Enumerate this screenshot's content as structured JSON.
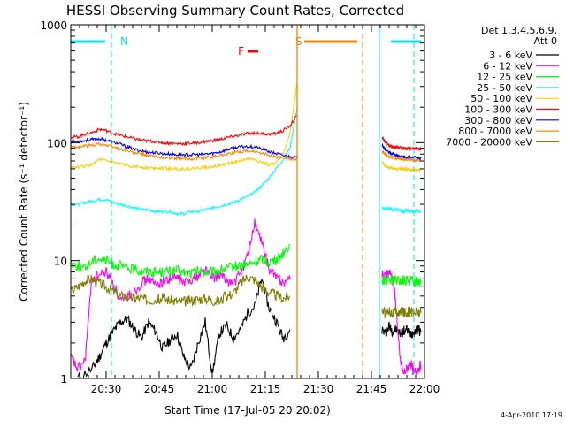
{
  "chart_data": {
    "type": "line",
    "title": "HESSI Observing Summary Count Rates, Corrected",
    "xlabel": "Start Time (17-Jul-05 20:20:02)",
    "ylabel": "Corrected Count Rate (s⁻¹ detector⁻¹)",
    "y_scale": "log",
    "ylim": [
      1,
      1000
    ],
    "xlim_minutes_after_2020": [
      0,
      100
    ],
    "x_ticks": [
      {
        "label": "20:30",
        "minute": 10
      },
      {
        "label": "20:45",
        "minute": 25
      },
      {
        "label": "21:00",
        "minute": 40
      },
      {
        "label": "21:15",
        "minute": 55
      },
      {
        "label": "21:30",
        "minute": 70
      },
      {
        "label": "21:45",
        "minute": 85
      },
      {
        "label": "22:00",
        "minute": 100
      }
    ],
    "y_ticks": [
      {
        "label": "1",
        "value": 1
      },
      {
        "label": "10",
        "value": 10
      },
      {
        "label": "100",
        "value": 100
      },
      {
        "label": "1000",
        "value": 1000
      }
    ],
    "legend_header": [
      "Det 1,3,4,5,6,9,",
      "Att 0"
    ],
    "legend_placement": "right",
    "grid": false,
    "flags": [
      {
        "label": "N",
        "color": "#00e5e5",
        "segments": [
          [
            0,
            9.7
          ],
          [
            90.5,
            99
          ]
        ],
        "dashed_at": [
          11.5,
          97
        ],
        "solid_at": 87.2
      },
      {
        "label": "S",
        "color": "#ff7f00",
        "segments": [
          [
            66,
            81
          ]
        ],
        "dashed_at": [
          82.5
        ],
        "solid_at": 64
      },
      {
        "label": "F",
        "color": "#ff0000",
        "segments": [
          [
            50,
            53
          ]
        ]
      }
    ],
    "series": [
      {
        "name": "3 - 6 keV",
        "color": "#000000",
        "x": [
          2,
          6,
          8,
          10,
          12,
          14,
          16,
          18,
          20,
          22,
          24,
          26,
          28,
          30,
          32,
          34,
          36,
          38,
          40,
          42,
          44,
          46,
          48,
          50,
          52,
          54,
          56,
          58,
          60,
          62
        ],
        "y": [
          1,
          1.2,
          1.5,
          2.0,
          2.5,
          3,
          3.2,
          2.6,
          2.2,
          3,
          2.5,
          1.8,
          2.1,
          2.4,
          1.5,
          1.2,
          2,
          3,
          1.1,
          2.4,
          2.8,
          2.2,
          2.6,
          3.6,
          4.1,
          7,
          4,
          3.1,
          2.2,
          2.6
        ]
      },
      {
        "name": "6 - 12 keV",
        "color": "#ff00ff",
        "x": [
          0,
          2,
          4,
          6,
          8,
          10,
          12,
          14,
          16,
          18,
          20,
          22,
          24,
          26,
          28,
          30,
          32,
          34,
          36,
          38,
          40,
          42,
          44,
          46,
          48,
          50,
          52,
          54,
          56,
          58,
          60,
          62
        ],
        "y": [
          1.5,
          1.2,
          1.4,
          7,
          7.5,
          8,
          6.5,
          4.5,
          5,
          5.5,
          6.5,
          7,
          6.2,
          6.7,
          7,
          7.2,
          6.4,
          7,
          7.4,
          8.5,
          7.1,
          7.5,
          6.8,
          6.4,
          7.8,
          11,
          21,
          14,
          8.5,
          7.3,
          6.6,
          6.9
        ]
      },
      {
        "name": "12 - 25 keV",
        "color": "#00ff00",
        "x": [
          0,
          2,
          4,
          6,
          8,
          10,
          12,
          14,
          16,
          18,
          20,
          22,
          24,
          26,
          28,
          30,
          32,
          34,
          36,
          38,
          40,
          42,
          44,
          46,
          48,
          50,
          52,
          54,
          56,
          58,
          60,
          62
        ],
        "y": [
          9.5,
          9,
          8.5,
          10,
          10.5,
          10,
          9.3,
          9,
          8.6,
          8.4,
          8.2,
          8.1,
          8,
          8,
          8.1,
          8.2,
          7.9,
          7.8,
          8.1,
          8,
          7.9,
          8.3,
          8.5,
          8.9,
          9.1,
          9.2,
          9.6,
          10.4,
          9.7,
          10.1,
          11.6,
          13.7
        ]
      },
      {
        "name": "25 - 50 keV",
        "color": "#00ffff",
        "x": [
          0,
          2,
          4,
          6,
          8,
          10,
          12,
          14,
          16,
          18,
          20,
          22,
          24,
          26,
          28,
          30,
          32,
          34,
          36,
          38,
          40,
          42,
          44,
          46,
          48,
          50,
          52,
          54,
          56,
          58,
          60,
          62,
          64
        ],
        "y": [
          30,
          30,
          31,
          32,
          33,
          33,
          31,
          30,
          29,
          28,
          27,
          27,
          26,
          26,
          26,
          25,
          25,
          26,
          26,
          27,
          28,
          29,
          30,
          31,
          33,
          35,
          38,
          43,
          50,
          60,
          72,
          90,
          200
        ]
      },
      {
        "name": "50 - 100 keV",
        "color": "#ffcc00",
        "x": [
          0,
          2,
          4,
          6,
          8,
          10,
          12,
          14,
          16,
          18,
          20,
          22,
          24,
          26,
          28,
          30,
          32,
          34,
          36,
          38,
          40,
          42,
          44,
          46,
          48,
          50,
          52,
          54,
          56,
          58,
          60,
          62,
          64
        ],
        "y": [
          62,
          62,
          63,
          65,
          72,
          70,
          68,
          66,
          64,
          63,
          62,
          61,
          61,
          61,
          60,
          60,
          60,
          60,
          61,
          62,
          63,
          64,
          66,
          68,
          70,
          73,
          72,
          68,
          65,
          67,
          80,
          120,
          330
        ]
      },
      {
        "name": "100 - 300 keV",
        "color": "#ff0000",
        "x": [
          0,
          2,
          4,
          6,
          8,
          10,
          12,
          14,
          16,
          18,
          20,
          22,
          24,
          26,
          28,
          30,
          32,
          34,
          36,
          38,
          40,
          42,
          44,
          46,
          48,
          50,
          52,
          54,
          56,
          58,
          60,
          62,
          64
        ],
        "y": [
          112,
          112,
          118,
          122,
          130,
          127,
          120,
          115,
          112,
          108,
          105,
          103,
          102,
          100,
          99,
          98,
          98,
          99,
          100,
          102,
          104,
          106,
          110,
          113,
          116,
          120,
          121,
          119,
          118,
          120,
          126,
          140,
          170
        ]
      },
      {
        "name": "300 - 800 keV",
        "color": "#0000ff",
        "x": [
          0,
          2,
          4,
          6,
          8,
          10,
          12,
          14,
          16,
          18,
          20,
          22,
          24,
          26,
          28,
          30,
          32,
          34,
          36,
          38,
          40,
          42,
          44,
          46,
          48,
          50,
          52,
          54,
          56,
          58,
          60,
          62,
          64
        ],
        "y": [
          102,
          102,
          104,
          106,
          108,
          105,
          101,
          97,
          92,
          88,
          85,
          83,
          82,
          81,
          80,
          79,
          79,
          79,
          79,
          80,
          81,
          83,
          87,
          90,
          92,
          93,
          92,
          88,
          84,
          81,
          78,
          76,
          75
        ]
      },
      {
        "name": "800 - 7000 keV",
        "color": "#ff8800",
        "x": [
          0,
          2,
          4,
          6,
          8,
          10,
          12,
          14,
          16,
          18,
          20,
          22,
          24,
          26,
          28,
          30,
          32,
          34,
          36,
          38,
          40,
          42,
          44,
          46,
          48,
          50,
          52,
          54,
          56,
          58,
          60,
          62,
          64
        ],
        "y": [
          92,
          92,
          94,
          95,
          98,
          95,
          92,
          88,
          85,
          82,
          80,
          78,
          76,
          75,
          74,
          74,
          73,
          73,
          74,
          75,
          76,
          78,
          80,
          82,
          84,
          85,
          84,
          81,
          78,
          76,
          74,
          73,
          72
        ]
      },
      {
        "name": "7000 - 20000 keV",
        "color": "#808000",
        "x": [
          0,
          2,
          4,
          6,
          8,
          10,
          12,
          14,
          16,
          18,
          20,
          22,
          24,
          26,
          28,
          30,
          32,
          34,
          36,
          38,
          40,
          42,
          44,
          46,
          48,
          50,
          52,
          54,
          56,
          58,
          60,
          62
        ],
        "y": [
          5.5,
          6,
          6.8,
          7,
          6.5,
          6,
          5.5,
          5,
          5,
          4.8,
          4.8,
          4.6,
          4.7,
          4.8,
          4.6,
          4.5,
          4.5,
          4.6,
          4.7,
          4.8,
          4.6,
          4.5,
          5,
          5.3,
          6.5,
          7.3,
          6.9,
          6,
          5.4,
          5.1,
          4.8,
          5
        ]
      }
    ],
    "series_after_gap_x": [
      88,
      89,
      90,
      91,
      92,
      93,
      94,
      95,
      96,
      97,
      98,
      99
    ],
    "series_after_gap": [
      {
        "name": "3 - 6 keV",
        "y": [
          2.6,
          2.4,
          2.8,
          2.5,
          2.6,
          2.4,
          2.5,
          2.6,
          2.4,
          2.5,
          2.6,
          2.5
        ]
      },
      {
        "name": "6 - 12 keV",
        "y": [
          7.5,
          7.3,
          8,
          7.2,
          4,
          1.5,
          1.1,
          1.2,
          1.4,
          1.1,
          1.2,
          1.3
        ]
      },
      {
        "name": "12 - 25 keV",
        "y": [
          6.8,
          6.8,
          6.9,
          6.7,
          6.8,
          6.6,
          6.8,
          6.7,
          6.8,
          6.6,
          6.8,
          6.7
        ]
      },
      {
        "name": "25 - 50 keV",
        "y": [
          28,
          27,
          28,
          27,
          27,
          27,
          26,
          27,
          26,
          26,
          27,
          26
        ]
      },
      {
        "name": "50 - 100 keV",
        "y": [
          68,
          63,
          61,
          61,
          60,
          60,
          60,
          59,
          59,
          59,
          59,
          59
        ]
      },
      {
        "name": "100 - 300 keV",
        "y": [
          110,
          100,
          95,
          93,
          92,
          91,
          90,
          90,
          89,
          89,
          89,
          88
        ]
      },
      {
        "name": "300 - 800 keV",
        "y": [
          95,
          87,
          82,
          80,
          78,
          77,
          76,
          75,
          75,
          75,
          74,
          74
        ]
      },
      {
        "name": "800 - 7000 keV",
        "y": [
          85,
          79,
          76,
          75,
          74,
          73,
          72,
          72,
          72,
          71,
          71,
          71
        ]
      },
      {
        "name": "7000 - 20000 keV",
        "y": [
          3.8,
          3.6,
          3.8,
          3.6,
          3.7,
          3.6,
          3.7,
          3.6,
          3.7,
          3.6,
          3.7,
          3.6
        ]
      }
    ]
  },
  "stamp": "4-Apr-2010 17:19"
}
